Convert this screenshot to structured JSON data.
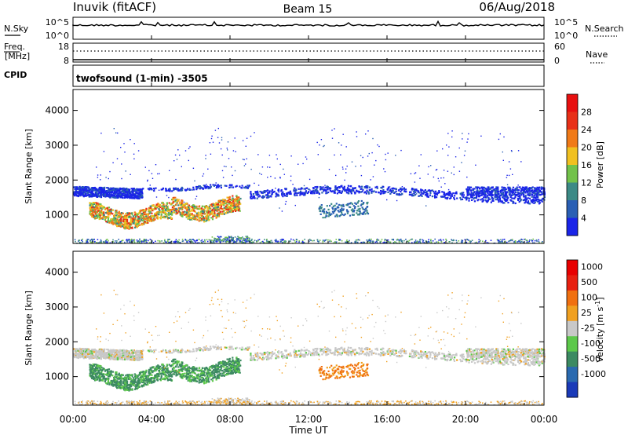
{
  "header": {
    "station": "Inuvik (fitACF)",
    "beam": "Beam 15",
    "date": "06/Aug/2018"
  },
  "panels": {
    "nsky": {
      "left_label": "N.Sky",
      "left_ticks": [
        "10^5",
        "10^0"
      ],
      "right_ticks": [
        "10^5",
        "10^0"
      ],
      "right_label": "N.Search"
    },
    "freq": {
      "left_label_1": "Freq.",
      "left_label_2": "[MHz]",
      "left_ticks": [
        "18",
        "8"
      ],
      "right_ticks": [
        "60",
        "0"
      ],
      "right_label": "Nave"
    },
    "cpid": {
      "left_label": "CPID",
      "text": "twofsound (1-min) -3505"
    }
  },
  "chart_data": [
    {
      "type": "heatmap",
      "parameter": "power",
      "ylabel": "Slant Range [km]",
      "xlabel": "Time UT",
      "ylim": [
        180,
        4600
      ],
      "yticks": [
        "1000",
        "2000",
        "3000",
        "4000"
      ],
      "xticks": [
        "00:00",
        "04:00",
        "08:00",
        "12:00",
        "16:00",
        "20:00",
        "00:00"
      ],
      "colorbar_label": "Power [dB]",
      "colorbar_ticks": [
        "4",
        "8",
        "12",
        "16",
        "20",
        "24",
        "28"
      ],
      "colors": [
        "#1a24e8",
        "#2a5fb4",
        "#3c8a86",
        "#72c24a",
        "#f0c020",
        "#f07a18",
        "#e83018",
        "#e81010"
      ]
    },
    {
      "type": "heatmap",
      "parameter": "velocity",
      "ylabel": "Slant Range [km]",
      "xlabel": "Time UT",
      "ylim": [
        180,
        4600
      ],
      "yticks": [
        "1000",
        "2000",
        "3000",
        "4000"
      ],
      "xticks": [
        "00:00",
        "04:00",
        "08:00",
        "12:00",
        "16:00",
        "20:00",
        "00:00"
      ],
      "colorbar_label": "Velocity [m s^-1]",
      "colorbar_ticks": [
        "1000",
        "500",
        "100",
        "25",
        "-25",
        "-100",
        "-500",
        "-1000"
      ],
      "colors": [
        "#1a3ab8",
        "#2a6ab0",
        "#3c8a62",
        "#5cc84a",
        "#c8c8c8",
        "#f0a020",
        "#f07010",
        "#e82010",
        "#e80000"
      ]
    }
  ],
  "x_axis": {
    "label": "Time UT",
    "ticks": [
      "00:00",
      "04:00",
      "08:00",
      "12:00",
      "16:00",
      "20:00",
      "00:00"
    ]
  }
}
